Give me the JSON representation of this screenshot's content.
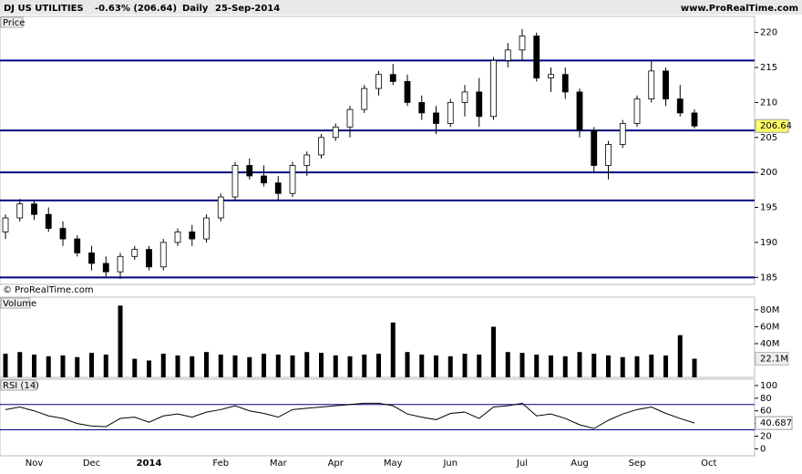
{
  "header": {
    "title": "DJ US UTILITIES",
    "change": "-0.63% (206.64)",
    "period": "Daily",
    "date": "25-Sep-2014",
    "source": "www.ProRealTime.com"
  },
  "copyright": "© ProRealTime.com",
  "chart_data": [
    {
      "type": "candlestick",
      "title": "Price",
      "up_color": "#ffffff",
      "down_color": "#000000",
      "hline_color": "#000080",
      "categories": [
        null,
        null,
        "Nov",
        null,
        null,
        null,
        "Dec",
        null,
        null,
        null,
        "2014",
        null,
        null,
        null,
        null,
        "Feb",
        null,
        null,
        null,
        "Mar",
        null,
        null,
        null,
        "Apr",
        null,
        null,
        null,
        "May",
        null,
        null,
        null,
        "Jun",
        null,
        null,
        null,
        null,
        "Jul",
        null,
        null,
        null,
        "Aug",
        null,
        null,
        null,
        "Sep",
        null,
        null,
        null,
        null,
        "Oct"
      ],
      "open": [
        191.5,
        193.5,
        195.5,
        194.0,
        192.0,
        190.5,
        188.5,
        187.0,
        185.8,
        188.0,
        189.0,
        186.5,
        190.0,
        191.5,
        190.5,
        193.5,
        196.5,
        201.0,
        199.5,
        198.5,
        197.0,
        201.0,
        202.5,
        205.0,
        206.5,
        209.0,
        212.0,
        214.0,
        213.0,
        210.0,
        208.5,
        207.0,
        210.0,
        211.5,
        208.0,
        216.0,
        217.5,
        219.5,
        213.5,
        214.0,
        211.5,
        206.0,
        201.0,
        204.0,
        207.0,
        210.5,
        214.5,
        210.5,
        208.5,
        null
      ],
      "high": [
        194.0,
        196.2,
        196.0,
        195.0,
        193.0,
        191.0,
        189.5,
        188.0,
        188.5,
        189.5,
        189.5,
        190.5,
        192.0,
        192.5,
        194.0,
        197.0,
        201.5,
        202.0,
        201.0,
        199.5,
        201.5,
        203.0,
        205.5,
        207.0,
        209.5,
        212.5,
        214.5,
        215.5,
        214.0,
        211.0,
        209.5,
        210.5,
        212.5,
        213.5,
        216.5,
        218.5,
        220.5,
        220.0,
        215.0,
        215.0,
        212.0,
        206.5,
        204.5,
        207.5,
        211.0,
        216.0,
        215.0,
        212.5,
        209.0,
        null
      ],
      "low": [
        190.5,
        193.0,
        193.2,
        191.5,
        189.5,
        188.0,
        186.0,
        185.0,
        184.8,
        187.5,
        186.0,
        186.0,
        189.5,
        189.5,
        190.0,
        193.0,
        196.0,
        199.0,
        198.0,
        196.0,
        196.5,
        199.5,
        202.0,
        204.5,
        205.0,
        208.5,
        211.0,
        212.5,
        209.5,
        207.5,
        205.5,
        206.5,
        208.0,
        206.5,
        207.5,
        215.0,
        216.0,
        213.0,
        211.5,
        210.5,
        205.0,
        200.0,
        199.0,
        203.5,
        206.5,
        210.0,
        209.5,
        208.0,
        206.3,
        null
      ],
      "close": [
        193.5,
        195.5,
        194.0,
        192.0,
        190.5,
        188.5,
        187.0,
        185.8,
        188.0,
        189.0,
        186.5,
        190.0,
        191.5,
        190.5,
        193.5,
        196.5,
        201.0,
        199.5,
        198.5,
        197.0,
        201.0,
        202.5,
        205.0,
        206.5,
        209.0,
        212.0,
        214.0,
        213.0,
        210.0,
        208.5,
        207.0,
        210.0,
        211.5,
        208.0,
        216.0,
        217.5,
        219.5,
        213.5,
        214.0,
        211.5,
        206.0,
        201.0,
        204.0,
        207.0,
        210.5,
        214.5,
        210.5,
        208.5,
        206.64,
        null
      ],
      "hlines": [
        216,
        206,
        200,
        196,
        185
      ],
      "ylim": [
        184,
        222.3
      ],
      "yticks": [
        185,
        190,
        195,
        200,
        205,
        210,
        215,
        220
      ]
    },
    {
      "type": "bar",
      "title": "Volume",
      "color": "#000000",
      "values": [
        28,
        30,
        27,
        25,
        26,
        24,
        29,
        27,
        85,
        22,
        20,
        28,
        26,
        25,
        30,
        27,
        26,
        24,
        28,
        27,
        26,
        30,
        29,
        26,
        25,
        27,
        28,
        65,
        30,
        27,
        26,
        25,
        28,
        27,
        60,
        30,
        29,
        27,
        26,
        25,
        30,
        28,
        26,
        24,
        25,
        27,
        26,
        50,
        22.1,
        null
      ],
      "value_labels": [
        null,
        null,
        null,
        null,
        null,
        null,
        null,
        null,
        null,
        null,
        null,
        null,
        null,
        null,
        null,
        null,
        null,
        null,
        null,
        null,
        null,
        null,
        null,
        null,
        null,
        null,
        null,
        null,
        null,
        null,
        null,
        null,
        null,
        null,
        null,
        null,
        null,
        null,
        null,
        null,
        null,
        null,
        null,
        null,
        null,
        null,
        null,
        null,
        "22.1M",
        null
      ],
      "ylim": [
        0,
        95
      ],
      "yticks": [
        {
          "value": 40,
          "label": "40M"
        },
        {
          "value": 60,
          "label": "60M"
        },
        {
          "value": 80,
          "label": "80M"
        }
      ]
    },
    {
      "type": "line",
      "title": "RSI (14)",
      "color": "#000000",
      "hline_color": "#000080",
      "values": [
        62,
        66,
        60,
        52,
        48,
        40,
        36,
        35,
        48,
        50,
        42,
        52,
        55,
        50,
        58,
        62,
        68,
        60,
        56,
        50,
        62,
        64,
        66,
        68,
        70,
        72,
        72,
        68,
        55,
        50,
        46,
        56,
        58,
        48,
        66,
        68,
        72,
        52,
        55,
        48,
        38,
        32,
        45,
        55,
        62,
        66,
        56,
        48,
        40.687,
        null
      ],
      "hlines": [
        70,
        30
      ],
      "ylim": [
        -11,
        110
      ],
      "yticks": [
        0,
        20,
        40,
        60,
        80,
        100
      ]
    }
  ]
}
